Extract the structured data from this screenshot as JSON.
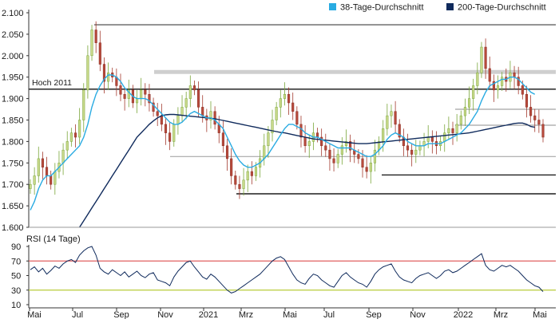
{
  "chart_data": [
    {
      "type": "candlestick",
      "title": "",
      "ylim": [
        1.6,
        2.1
      ],
      "yticks": [
        "2.100",
        "2.050",
        "2.000",
        "1.950",
        "1.900",
        "1.850",
        "1.800",
        "1.750",
        "1.700",
        "1.650",
        "1.600"
      ],
      "xticks": [
        "Mai",
        "Jul",
        "Sep",
        "Nov",
        "2021",
        "Mrz",
        "Mai",
        "Jul",
        "Sep",
        "Nov",
        "2022",
        "Mrz",
        "Mai"
      ],
      "legend": {
        "placement": "top-right",
        "items": [
          {
            "label": "38-Tage-Durchschnitt",
            "color": "#29abe2"
          },
          {
            "label": "200-Tage-Durchschnitt",
            "color": "#0f2a5c"
          }
        ]
      },
      "annotations": [
        {
          "label": "Hoch 2011",
          "value": 1.922
        }
      ],
      "resistance_lines": [
        2.072,
        1.962,
        1.922,
        1.875,
        1.838,
        1.765,
        1.722,
        1.678
      ],
      "price_series": [
        1.7,
        1.72,
        1.76,
        1.74,
        1.72,
        1.7,
        1.73,
        1.75,
        1.78,
        1.8,
        1.82,
        1.81,
        1.85,
        1.92,
        2.0,
        2.06,
        2.03,
        1.98,
        1.94,
        1.96,
        1.95,
        1.93,
        1.91,
        1.9,
        1.92,
        1.89,
        1.9,
        1.92,
        1.91,
        1.89,
        1.87,
        1.86,
        1.84,
        1.82,
        1.8,
        1.84,
        1.86,
        1.88,
        1.9,
        1.93,
        1.92,
        1.88,
        1.86,
        1.85,
        1.87,
        1.84,
        1.82,
        1.79,
        1.76,
        1.72,
        1.7,
        1.69,
        1.71,
        1.73,
        1.72,
        1.74,
        1.76,
        1.79,
        1.82,
        1.85,
        1.88,
        1.9,
        1.91,
        1.89,
        1.87,
        1.84,
        1.81,
        1.79,
        1.8,
        1.82,
        1.81,
        1.79,
        1.78,
        1.76,
        1.75,
        1.77,
        1.79,
        1.8,
        1.78,
        1.77,
        1.76,
        1.74,
        1.73,
        1.75,
        1.78,
        1.8,
        1.83,
        1.86,
        1.87,
        1.84,
        1.81,
        1.79,
        1.78,
        1.77,
        1.78,
        1.79,
        1.8,
        1.81,
        1.8,
        1.79,
        1.8,
        1.82,
        1.83,
        1.82,
        1.84,
        1.86,
        1.88,
        1.9,
        1.93,
        1.96,
        2.02,
        1.97,
        1.94,
        1.92,
        1.93,
        1.95,
        1.94,
        1.96,
        1.95,
        1.93,
        1.91,
        1.88,
        1.86,
        1.85,
        1.84,
        1.81
      ],
      "ma38_series": [
        1.64,
        1.66,
        1.69,
        1.71,
        1.72,
        1.72,
        1.73,
        1.74,
        1.75,
        1.76,
        1.77,
        1.78,
        1.79,
        1.81,
        1.84,
        1.88,
        1.91,
        1.93,
        1.945,
        1.955,
        1.955,
        1.95,
        1.94,
        1.925,
        1.915,
        1.905,
        1.9,
        1.9,
        1.9,
        1.895,
        1.885,
        1.875,
        1.865,
        1.855,
        1.845,
        1.84,
        1.84,
        1.845,
        1.855,
        1.865,
        1.87,
        1.865,
        1.86,
        1.855,
        1.855,
        1.85,
        1.84,
        1.83,
        1.81,
        1.79,
        1.77,
        1.755,
        1.745,
        1.74,
        1.74,
        1.745,
        1.75,
        1.76,
        1.77,
        1.785,
        1.8,
        1.815,
        1.83,
        1.84,
        1.84,
        1.835,
        1.83,
        1.82,
        1.815,
        1.81,
        1.81,
        1.805,
        1.8,
        1.795,
        1.79,
        1.785,
        1.785,
        1.785,
        1.785,
        1.78,
        1.775,
        1.77,
        1.765,
        1.765,
        1.77,
        1.78,
        1.79,
        1.805,
        1.815,
        1.82,
        1.815,
        1.81,
        1.8,
        1.795,
        1.79,
        1.79,
        1.79,
        1.795,
        1.795,
        1.795,
        1.795,
        1.8,
        1.805,
        1.81,
        1.815,
        1.82,
        1.83,
        1.84,
        1.855,
        1.87,
        1.895,
        1.915,
        1.93,
        1.935,
        1.94,
        1.945,
        1.945,
        1.95,
        1.95,
        1.945,
        1.935,
        1.925,
        1.915,
        1.91
      ],
      "ma200_series": [
        null,
        null,
        null,
        null,
        null,
        null,
        null,
        null,
        null,
        null,
        null,
        null,
        1.6,
        1.615,
        1.63,
        1.645,
        1.66,
        1.675,
        1.69,
        1.705,
        1.72,
        1.735,
        1.75,
        1.765,
        1.78,
        1.795,
        1.81,
        1.82,
        1.83,
        1.84,
        1.848,
        1.855,
        1.86,
        1.862,
        1.863,
        1.863,
        1.862,
        1.861,
        1.86,
        1.859,
        1.858,
        1.857,
        1.856,
        1.855,
        1.854,
        1.853,
        1.851,
        1.849,
        1.847,
        1.845,
        1.843,
        1.841,
        1.839,
        1.837,
        1.835,
        1.833,
        1.831,
        1.829,
        1.827,
        1.825,
        1.823,
        1.821,
        1.82,
        1.818,
        1.816,
        1.814,
        1.812,
        1.81,
        1.808,
        1.806,
        1.805,
        1.804,
        1.803,
        1.802,
        1.801,
        1.8,
        1.799,
        1.798,
        1.797,
        1.796,
        1.795,
        1.795,
        1.795,
        1.796,
        1.797,
        1.798,
        1.799,
        1.8,
        1.801,
        1.802,
        1.803,
        1.804,
        1.805,
        1.806,
        1.807,
        1.808,
        1.809,
        1.81,
        1.811,
        1.812,
        1.813,
        1.814,
        1.815,
        1.816,
        1.817,
        1.818,
        1.819,
        1.82,
        1.822,
        1.824,
        1.826,
        1.828,
        1.83,
        1.832,
        1.834,
        1.836,
        1.838,
        1.84,
        1.842,
        1.843,
        1.843,
        1.84,
        1.835,
        1.833
      ]
    },
    {
      "type": "line",
      "title": "RSI (14 Tage)",
      "ylim": [
        10,
        90
      ],
      "yticks": [
        "90",
        "70",
        "50",
        "30",
        "10"
      ],
      "reference_lines": [
        {
          "value": 70,
          "color": "#e06060"
        },
        {
          "value": 30,
          "color": "#b8cc3a"
        }
      ],
      "rsi_series": [
        58,
        62,
        55,
        60,
        52,
        57,
        63,
        60,
        66,
        70,
        72,
        68,
        78,
        84,
        88,
        90,
        78,
        60,
        55,
        52,
        58,
        54,
        50,
        55,
        48,
        52,
        56,
        50,
        47,
        52,
        54,
        44,
        42,
        40,
        36,
        48,
        56,
        62,
        68,
        70,
        62,
        55,
        48,
        45,
        52,
        48,
        42,
        36,
        30,
        26,
        28,
        32,
        36,
        40,
        44,
        48,
        52,
        58,
        64,
        70,
        74,
        76,
        72,
        62,
        52,
        44,
        40,
        38,
        46,
        52,
        50,
        44,
        40,
        36,
        34,
        42,
        50,
        54,
        48,
        44,
        40,
        38,
        34,
        42,
        52,
        58,
        62,
        64,
        66,
        56,
        48,
        44,
        42,
        40,
        46,
        50,
        52,
        54,
        50,
        46,
        50,
        56,
        58,
        54,
        56,
        60,
        64,
        68,
        72,
        76,
        80,
        64,
        58,
        56,
        60,
        64,
        62,
        64,
        60,
        56,
        50,
        44,
        40,
        36,
        34,
        28
      ]
    }
  ]
}
